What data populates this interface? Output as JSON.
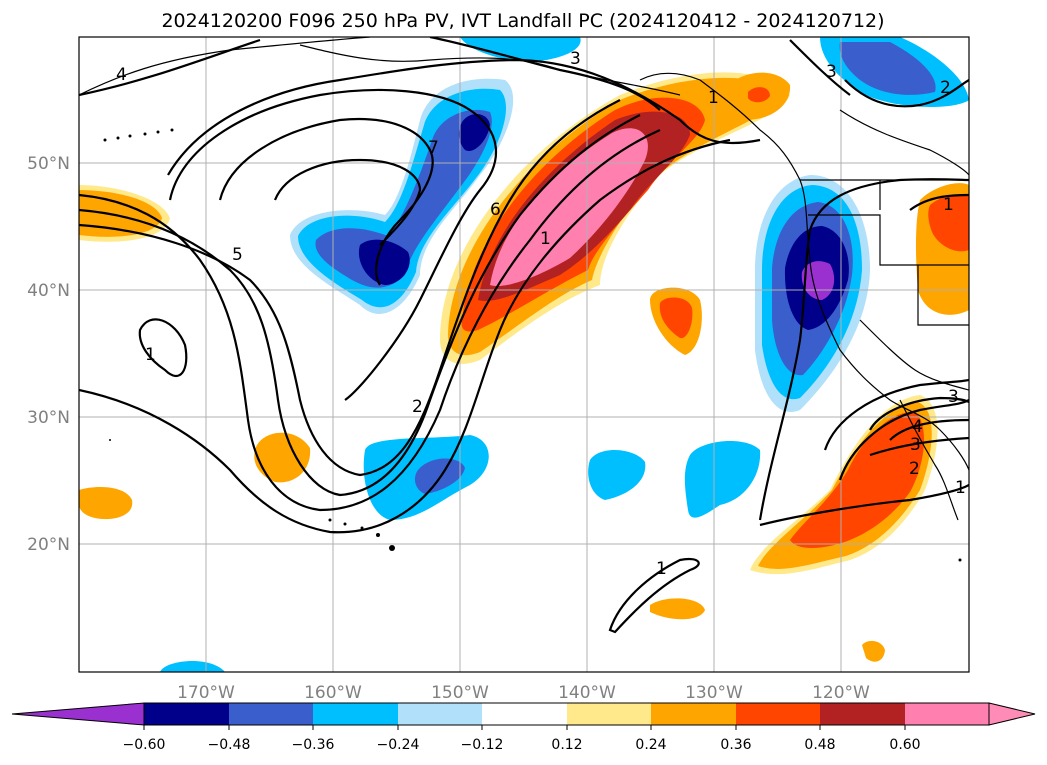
{
  "title": "2024120200 F096 250 hPa PV, IVT Landfall PC (2024120412 - 2024120712)",
  "map": {
    "lon_ticks": [
      "170°W",
      "160°W",
      "150°W",
      "140°W",
      "130°W",
      "120°W"
    ],
    "lat_ticks": [
      "50°N",
      "40°N",
      "30°N",
      "20°N"
    ],
    "grid": true,
    "contour_labels": [
      "4",
      "3",
      "1",
      "3",
      "2",
      "7",
      "5",
      "6",
      "1",
      "1",
      "2",
      "1",
      "1",
      "3",
      "3",
      "4",
      "2",
      "1"
    ]
  },
  "colorbar": {
    "labels": [
      "−0.60",
      "−0.48",
      "−0.36",
      "−0.24",
      "−0.12",
      "0.12",
      "0.24",
      "0.36",
      "0.48",
      "0.60"
    ],
    "colors": [
      "#9b30d0",
      "#00008b",
      "#3a5fcd",
      "#00bfff",
      "#b0e0fa",
      "#ffffff",
      "#ffe98a",
      "#ffa500",
      "#ff4500",
      "#b22222",
      "#ff7fae",
      "#ff8cb6"
    ]
  }
}
